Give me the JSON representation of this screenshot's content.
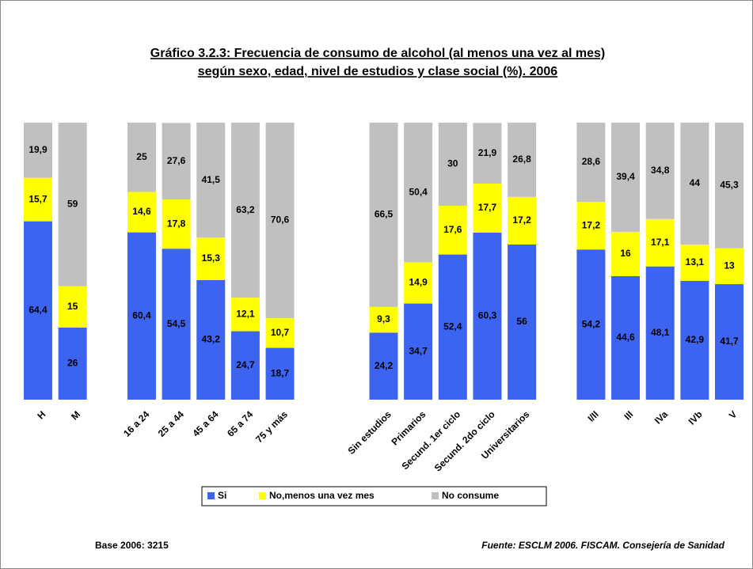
{
  "chart_data": {
    "type": "stacked_bar",
    "title": "Gráfico 3.2.3: Frecuencia de consumo de alcohol (al menos una vez al mes)",
    "subtitle": "según sexo, edad, nivel de estudios y clase social (%). 2006",
    "categories": [
      "H",
      "M",
      null,
      "16 a 24",
      "25 a 44",
      "45 a 64",
      "65 a 74",
      "75 y más",
      null,
      null,
      "Sin estudios",
      "Primarios",
      "Secund. 1er ciclo",
      "Secund. 2do ciclo",
      "Universitarios",
      null,
      "I/II",
      "III",
      "IVa",
      "IVb",
      "V"
    ],
    "series": [
      {
        "name": "Si",
        "color": "#3c64f0",
        "values": [
          64.4,
          26,
          null,
          60.4,
          54.5,
          43.2,
          24.7,
          18.7,
          null,
          null,
          24.2,
          34.7,
          52.4,
          60.3,
          56,
          null,
          54.2,
          44.6,
          48.1,
          42.9,
          41.7
        ],
        "value_labels": [
          "64,4",
          "26",
          null,
          "60,4",
          "54,5",
          "43,2",
          "24,7",
          "18,7",
          null,
          null,
          "24,2",
          "34,7",
          "52,4",
          "60,3",
          "56",
          null,
          "54,2",
          "44,6",
          "48,1",
          "42,9",
          "41,7"
        ]
      },
      {
        "name": "No,menos una vez mes",
        "color": "#ffff00",
        "values": [
          15.7,
          15,
          null,
          14.6,
          17.8,
          15.3,
          12.1,
          10.7,
          null,
          null,
          9.3,
          14.9,
          17.6,
          17.7,
          17.2,
          null,
          17.2,
          16,
          17.1,
          13.1,
          13
        ],
        "value_labels": [
          "15,7",
          "15",
          null,
          "14,6",
          "17,8",
          "15,3",
          "12,1",
          "10,7",
          null,
          null,
          "9,3",
          "14,9",
          "17,6",
          "17,7",
          "17,2",
          null,
          "17,2",
          "16",
          "17,1",
          "13,1",
          "13"
        ]
      },
      {
        "name": "No consume",
        "color": "#c0c0c0",
        "values": [
          19.9,
          59,
          null,
          25,
          27.6,
          41.5,
          63.2,
          70.6,
          null,
          null,
          66.5,
          50.4,
          30,
          21.9,
          26.8,
          null,
          28.6,
          39.4,
          34.8,
          44,
          45.3
        ],
        "value_labels": [
          "19,9",
          "59",
          null,
          "25",
          "27,6",
          "41,5",
          "63,2",
          "70,6",
          null,
          null,
          "66,5",
          "50,4",
          "30",
          "21,9",
          "26,8",
          null,
          "28,6",
          "39,4",
          "34,8",
          "44",
          "45,3"
        ]
      }
    ],
    "ylim": [
      0,
      100
    ],
    "legend": "bottom",
    "notes": [
      "Base 2006: 3215",
      "Fuente: ESCLM 2006. FISCAM. Consejería de Sanidad"
    ]
  }
}
